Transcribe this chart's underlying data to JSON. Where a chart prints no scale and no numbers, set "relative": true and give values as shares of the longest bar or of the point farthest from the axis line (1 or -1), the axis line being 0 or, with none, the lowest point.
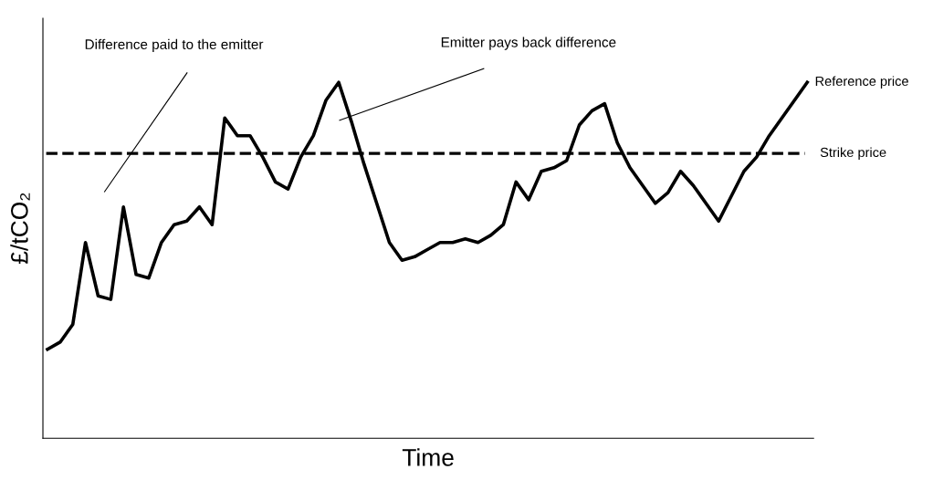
{
  "chart_data": {
    "type": "line",
    "relative": true,
    "xlabel": "Time",
    "ylabel": "£/tCO₂",
    "legend": false,
    "marker": "none",
    "line_style": "solid",
    "categories": [
      null,
      null,
      null,
      null,
      null,
      null,
      null,
      null,
      null,
      null,
      null,
      null,
      null,
      null,
      null,
      null,
      null,
      null,
      null,
      null,
      null,
      null,
      null,
      null,
      null,
      null,
      null,
      null,
      null,
      null,
      null,
      null,
      null,
      null,
      null,
      null,
      null,
      null,
      null,
      null,
      null,
      null,
      null,
      null,
      null,
      null,
      null,
      null,
      null,
      null,
      null,
      null,
      null,
      null,
      null,
      null,
      null,
      null,
      null,
      null,
      null
    ],
    "series": [
      {
        "name": "Reference price",
        "color": "#000000",
        "values": [
          0.25,
          0.27,
          0.32,
          0.55,
          0.4,
          0.39,
          0.65,
          0.46,
          0.45,
          0.55,
          0.6,
          0.61,
          0.65,
          0.6,
          0.9,
          0.85,
          0.85,
          0.79,
          0.72,
          0.7,
          0.79,
          0.85,
          0.95,
          1.0,
          0.89,
          0.77,
          0.66,
          0.55,
          0.5,
          0.51,
          0.53,
          0.55,
          0.55,
          0.56,
          0.55,
          0.57,
          0.6,
          0.72,
          0.67,
          0.75,
          0.76,
          0.78,
          0.88,
          0.92,
          0.94,
          0.83,
          0.76,
          0.71,
          0.66,
          0.69,
          0.75,
          0.71,
          0.66,
          0.61,
          0.68,
          0.75,
          0.79,
          0.85,
          0.9,
          0.95,
          1.0
        ]
      }
    ],
    "ref_lines": [
      {
        "axis": "y",
        "value": 0.8,
        "label": "Strike price",
        "color": "#000000",
        "line_style": "dashed"
      }
    ],
    "annotations": [
      "Difference paid to the emitter",
      "Emitter pays back difference"
    ]
  }
}
